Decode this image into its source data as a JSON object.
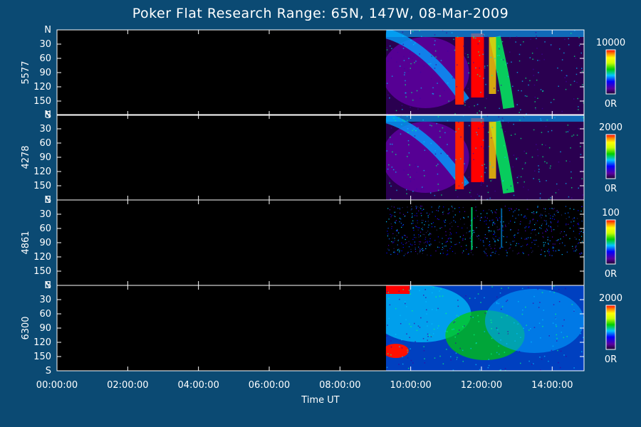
{
  "title": "Poker Flat Research Range: 65N, 147W, 08-Mar-2009",
  "xlabel": "Time UT",
  "colors": {
    "background": "#0b4a73",
    "plot_background": "#000000",
    "foreground": "#ffffff"
  },
  "chart_data": {
    "type": "heatmap",
    "x_axis": {
      "label": "Time UT",
      "ticks": [
        "00:00:00",
        "02:00:00",
        "04:00:00",
        "06:00:00",
        "08:00:00",
        "10:00:00",
        "12:00:00",
        "14:00:00"
      ],
      "tick_hours": [
        0,
        2,
        4,
        6,
        8,
        10,
        12,
        14
      ],
      "range_hours": [
        0,
        14.9
      ],
      "data_start_hours": 9.3
    },
    "y_axis": {
      "ticks": [
        "N",
        "30",
        "60",
        "90",
        "120",
        "150",
        "S"
      ],
      "tick_values": [
        0,
        30,
        60,
        90,
        120,
        150,
        180
      ],
      "range": [
        0,
        180
      ]
    },
    "panels": [
      {
        "label": "5577",
        "colorbar_max": "10000",
        "colorbar_min": "0R"
      },
      {
        "label": "4278",
        "colorbar_max": "2000",
        "colorbar_min": "0R"
      },
      {
        "label": "4861",
        "colorbar_max": "100",
        "colorbar_min": "0R"
      },
      {
        "label": "6300",
        "colorbar_max": "2000",
        "colorbar_min": "0R"
      }
    ]
  }
}
